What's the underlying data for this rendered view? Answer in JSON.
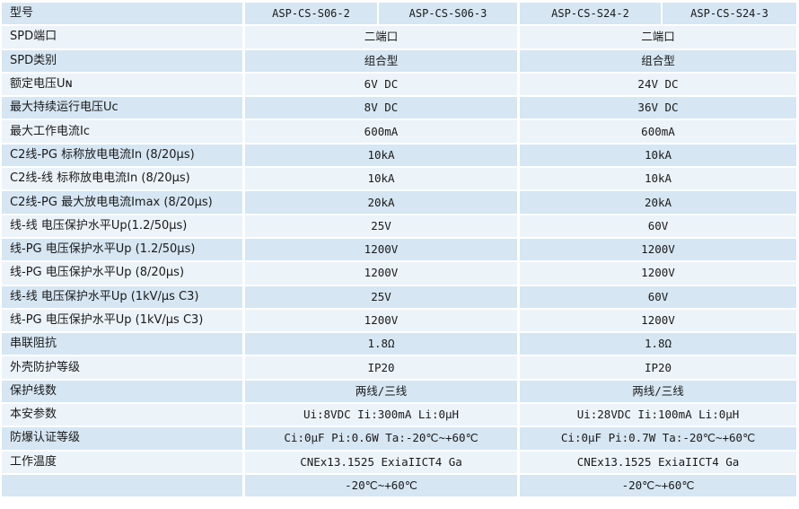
{
  "header": {
    "label": "型号",
    "models": [
      "ASP-CS-S06-2",
      "ASP-CS-S06-3",
      "ASP-CS-S24-2",
      "ASP-CS-S24-3"
    ]
  },
  "rows": [
    {
      "label": "SPD端口",
      "left": "二端口",
      "right": "二端口"
    },
    {
      "label": "SPD类别",
      "left": "组合型",
      "right": "组合型"
    },
    {
      "label": "额定电压Uɴ",
      "left": "6V DC",
      "right": "24V DC"
    },
    {
      "label": "最大持续运行电压Uc",
      "left": "8V DC",
      "right": "36V DC"
    },
    {
      "label": "最大工作电流Ic",
      "left": "600mA",
      "right": "600mA"
    },
    {
      "label": "C2线-PG 标称放电电流In (8/20μs)",
      "left": "10kA",
      "right": "10kA"
    },
    {
      "label": "C2线-线 标称放电电流In (8/20μs)",
      "left": "10kA",
      "right": "10kA"
    },
    {
      "label": "C2线-PG 最大放电电流Imax (8/20μs)",
      "left": "20kA",
      "right": "20kA"
    },
    {
      "label": "线-线 电压保护水平Up(1.2/50μs)",
      "left": "25V",
      "right": "60V"
    },
    {
      "label": "线-PG 电压保护水平Up (1.2/50μs)",
      "left": "1200V",
      "right": "1200V"
    },
    {
      "label": "线-PG 电压保护水平Up (8/20μs)",
      "left": "1200V",
      "right": "1200V"
    },
    {
      "label": "线-线 电压保护水平Up (1kV/μs C3)",
      "left": "25V",
      "right": "60V"
    },
    {
      "label": "线-PG 电压保护水平Up (1kV/μs C3)",
      "left": "1200V",
      "right": "1200V"
    },
    {
      "label": "串联阻抗",
      "left": "1.8Ω",
      "right": "1.8Ω"
    },
    {
      "label": "外壳防护等级",
      "left": "IP20",
      "right": "IP20"
    },
    {
      "label": "保护线数",
      "left": "两线/三线",
      "right": "两线/三线"
    },
    {
      "label": "本安参数",
      "left": "Ui:8VDC Ii:300mA Li:0μH",
      "right": "Ui:28VDC Ii:100mA Li:0μH"
    },
    {
      "label": "防爆认证等级",
      "left": "Ci:0μF Pi:0.6W Ta:-20℃~+60℃",
      "right": "Ci:0μF Pi:0.7W Ta:-20℃~+60℃"
    },
    {
      "label": "工作温度",
      "left": "CNEx13.1525 ExiaIICT4 Ga",
      "right": "CNEx13.1525 ExiaIICT4 Ga"
    },
    {
      "label": "",
      "left": "-20℃~+60℃",
      "right": "-20℃~+60℃"
    }
  ]
}
